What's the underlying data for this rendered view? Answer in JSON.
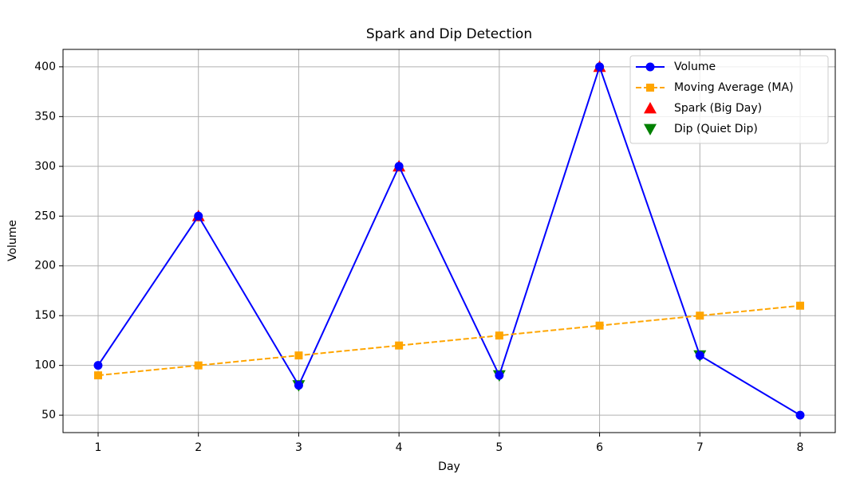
{
  "chart_data": {
    "type": "line",
    "title": "Spark and Dip Detection",
    "x_label": "Day",
    "y_label": "Volume",
    "x": [
      1,
      2,
      3,
      4,
      5,
      6,
      7,
      8
    ],
    "series": [
      {
        "name": "Volume",
        "color": "#0000ff",
        "marker": "circle",
        "line": "solid",
        "values": [
          100,
          250,
          80,
          300,
          90,
          400,
          110,
          50
        ]
      },
      {
        "name": "Moving Average (MA)",
        "color": "#ffa500",
        "marker": "square",
        "line": "dashed",
        "values": [
          90,
          100,
          110,
          120,
          130,
          140,
          150,
          160
        ]
      },
      {
        "name": "Spark (Big Day)",
        "color": "#ff0000",
        "marker": "triangle-up",
        "line": "none",
        "x": [
          2,
          4,
          6
        ],
        "values": [
          250,
          300,
          400
        ]
      },
      {
        "name": "Dip (Quiet Dip)",
        "color": "#008000",
        "marker": "triangle-down",
        "line": "none",
        "x": [
          3,
          5,
          7
        ],
        "values": [
          80,
          90,
          110
        ]
      }
    ],
    "xlim": [
      0.65,
      8.35
    ],
    "xticks": [
      1,
      2,
      3,
      4,
      5,
      6,
      7,
      8
    ],
    "ylim": [
      32.5,
      417.5
    ],
    "yticks": [
      50,
      100,
      150,
      200,
      250,
      300,
      350,
      400
    ],
    "grid": true,
    "legend": "upper right"
  }
}
